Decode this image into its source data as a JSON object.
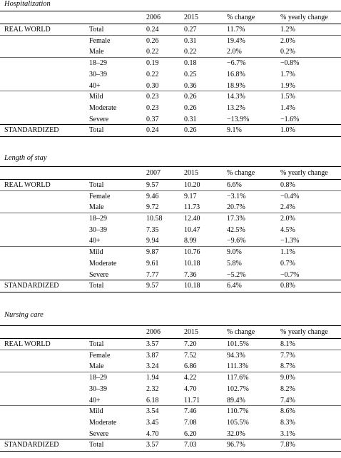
{
  "sections": [
    {
      "title": "Hospitalization",
      "header": {
        "year1": "2006",
        "year2": "2015",
        "pct_change": "% change",
        "pct_yearly": "% yearly change"
      },
      "groups": [
        {
          "name": "REAL WORLD",
          "blocks": [
            [
              {
                "label": "Total",
                "v1": "0.24",
                "v2": "0.27",
                "pc": "11.7%",
                "py": "1.2%"
              }
            ],
            [
              {
                "label": "Female",
                "v1": "0.26",
                "v2": "0.31",
                "pc": "19.4%",
                "py": "2.0%"
              },
              {
                "label": "Male",
                "v1": "0.22",
                "v2": "0.22",
                "pc": "2.0%",
                "py": "0.2%"
              }
            ],
            [
              {
                "label": "18–29",
                "v1": "0.19",
                "v2": "0.18",
                "pc": "−6.7%",
                "py": "−0.8%"
              },
              {
                "label": "30–39",
                "v1": "0.22",
                "v2": "0.25",
                "pc": "16.8%",
                "py": "1.7%"
              },
              {
                "label": "40+",
                "v1": "0.30",
                "v2": "0.36",
                "pc": "18.9%",
                "py": "1.9%"
              }
            ],
            [
              {
                "label": "Mild",
                "v1": "0.23",
                "v2": "0.26",
                "pc": "14.3%",
                "py": "1.5%"
              },
              {
                "label": "Moderate",
                "v1": "0.23",
                "v2": "0.26",
                "pc": "13.2%",
                "py": "1.4%"
              },
              {
                "label": "Severe",
                "v1": "0.37",
                "v2": "0.31",
                "pc": "−13.9%",
                "py": "−1.6%"
              }
            ]
          ]
        },
        {
          "name": "STANDARDIZED",
          "blocks": [
            [
              {
                "label": "Total",
                "v1": "0.24",
                "v2": "0.26",
                "pc": "9.1%",
                "py": "1.0%"
              }
            ]
          ]
        }
      ]
    },
    {
      "title": "Length of stay",
      "header": {
        "year1": "2007",
        "year2": "2015",
        "pct_change": "% change",
        "pct_yearly": "% yearly change"
      },
      "groups": [
        {
          "name": "REAL WORLD",
          "blocks": [
            [
              {
                "label": "Total",
                "v1": "9.57",
                "v2": "10.20",
                "pc": "6.6%",
                "py": "0.8%"
              }
            ],
            [
              {
                "label": "Female",
                "v1": "9.46",
                "v2": "9.17",
                "pc": "−3.1%",
                "py": "−0.4%"
              },
              {
                "label": "Male",
                "v1": "9.72",
                "v2": "11.73",
                "pc": "20.7%",
                "py": "2.4%"
              }
            ],
            [
              {
                "label": "18–29",
                "v1": "10.58",
                "v2": "12.40",
                "pc": "17.3%",
                "py": "2.0%"
              },
              {
                "label": "30–39",
                "v1": "7.35",
                "v2": "10.47",
                "pc": "42.5%",
                "py": "4.5%"
              },
              {
                "label": "40+",
                "v1": "9.94",
                "v2": "8.99",
                "pc": "−9.6%",
                "py": "−1.3%"
              }
            ],
            [
              {
                "label": "Mild",
                "v1": "9.87",
                "v2": "10.76",
                "pc": "9.0%",
                "py": "1.1%"
              },
              {
                "label": "Moderate",
                "v1": "9.61",
                "v2": "10.18",
                "pc": "5.8%",
                "py": "0.7%"
              },
              {
                "label": "Severe",
                "v1": "7.77",
                "v2": "7.36",
                "pc": "−5.2%",
                "py": "−0.7%"
              }
            ]
          ]
        },
        {
          "name": "STANDARDIZED",
          "blocks": [
            [
              {
                "label": "Total",
                "v1": "9.57",
                "v2": "10.18",
                "pc": "6.4%",
                "py": "0.8%"
              }
            ]
          ]
        }
      ]
    },
    {
      "title": "Nursing care",
      "header": {
        "year1": "2006",
        "year2": "2015",
        "pct_change": "% change",
        "pct_yearly": "% yearly change"
      },
      "groups": [
        {
          "name": "REAL WORLD",
          "blocks": [
            [
              {
                "label": "Total",
                "v1": "3.57",
                "v2": "7.20",
                "pc": "101.5%",
                "py": "8.1%"
              }
            ],
            [
              {
                "label": "Female",
                "v1": "3.87",
                "v2": "7.52",
                "pc": "94.3%",
                "py": "7.7%"
              },
              {
                "label": "Male",
                "v1": "3.24",
                "v2": "6.86",
                "pc": "111.3%",
                "py": "8.7%"
              }
            ],
            [
              {
                "label": "18–29",
                "v1": "1.94",
                "v2": "4.22",
                "pc": "117.6%",
                "py": "9.0%"
              },
              {
                "label": "30–39",
                "v1": "2.32",
                "v2": "4.70",
                "pc": "102.7%",
                "py": "8.2%"
              },
              {
                "label": "40+",
                "v1": "6.18",
                "v2": "11.71",
                "pc": "89.4%",
                "py": "7.4%"
              }
            ],
            [
              {
                "label": "Mild",
                "v1": "3.54",
                "v2": "7.46",
                "pc": "110.7%",
                "py": "8.6%"
              },
              {
                "label": "Moderate",
                "v1": "3.45",
                "v2": "7.08",
                "pc": "105.5%",
                "py": "8.3%"
              },
              {
                "label": "Severe",
                "v1": "4.70",
                "v2": "6.20",
                "pc": "32.0%",
                "py": "3.1%"
              }
            ]
          ]
        },
        {
          "name": "STANDARDIZED",
          "blocks": [
            [
              {
                "label": "Total",
                "v1": "3.57",
                "v2": "7.03",
                "pc": "96.7%",
                "py": "7.8%"
              }
            ]
          ]
        }
      ]
    }
  ]
}
